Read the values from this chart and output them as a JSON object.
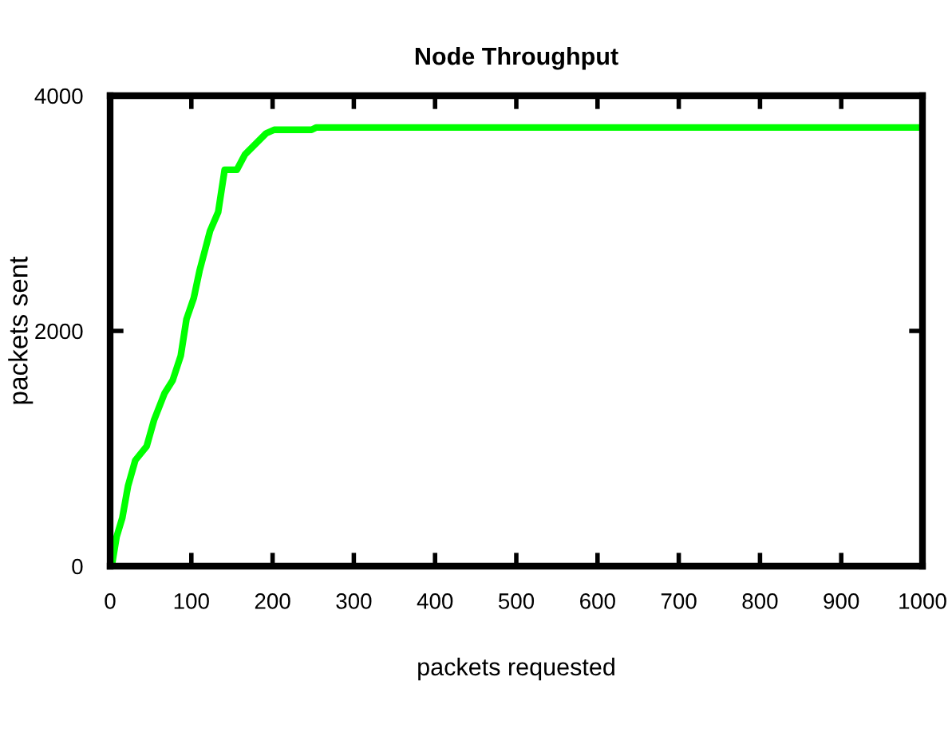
{
  "chart_data": {
    "type": "line",
    "title": "Node Throughput",
    "xlabel": "packets requested",
    "ylabel": "packets sent",
    "x": [
      2,
      8,
      15,
      22,
      31,
      45,
      54,
      67,
      77,
      87,
      94,
      103,
      110,
      123,
      133,
      141,
      156,
      166,
      179,
      192,
      202,
      248,
      254,
      1000
    ],
    "series": [
      {
        "color": "#00ff00",
        "values": [
          0,
          250,
          410,
          680,
          900,
          1020,
          1240,
          1470,
          1580,
          1790,
          2100,
          2280,
          2510,
          2850,
          3010,
          3370,
          3370,
          3500,
          3590,
          3680,
          3710,
          3710,
          3730,
          3730
        ]
      }
    ],
    "xlim": [
      0,
      1000
    ],
    "ylim": [
      0,
      4000
    ],
    "xticks": [
      0,
      100,
      200,
      300,
      400,
      500,
      600,
      700,
      800,
      900,
      1000
    ],
    "yticks": [
      0,
      2000,
      4000
    ],
    "grid": false,
    "legend": false,
    "marker": "none",
    "line_style": "solid"
  }
}
